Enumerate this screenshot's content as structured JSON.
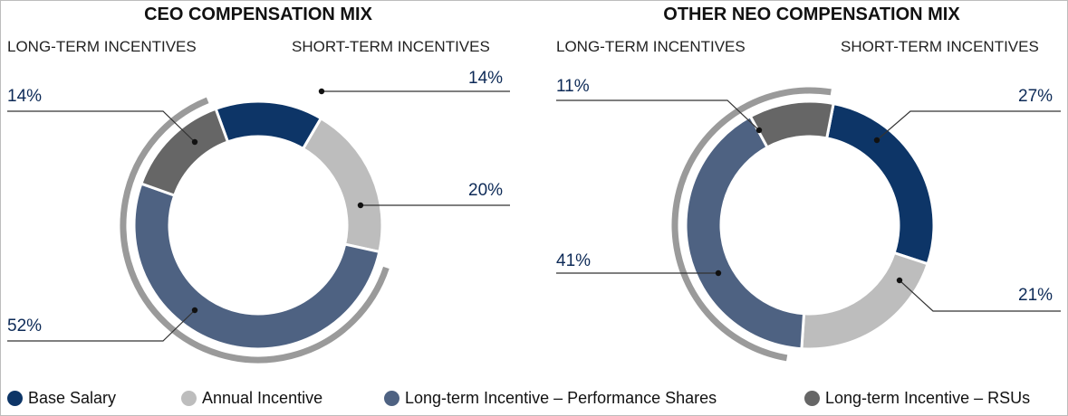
{
  "colors": {
    "base_salary": "#0d3567",
    "annual_incentive": "#bdbdbd",
    "ltip_performance": "#4e6282",
    "ltip_rsus": "#666666",
    "bracket": "#9a9a9a",
    "leader": "#333333"
  },
  "chart_data": [
    {
      "type": "pie",
      "title": "CEO COMPENSATION MIX",
      "group_labels": {
        "long_term": "LONG-TERM INCENTIVES",
        "short_term": "SHORT-TERM INCENTIVES"
      },
      "categories": [
        "Base Salary",
        "Annual Incentive",
        "Long-term Incentive – Performance Shares",
        "Long-term Incentive – RSUs"
      ],
      "values": [
        14,
        20,
        52,
        14
      ],
      "labels": [
        "14%",
        "20%",
        "52%",
        "14%"
      ]
    },
    {
      "type": "pie",
      "title": "OTHER NEO COMPENSATION MIX",
      "group_labels": {
        "long_term": "LONG-TERM INCENTIVES",
        "short_term": "SHORT-TERM INCENTIVES"
      },
      "categories": [
        "Base Salary",
        "Annual Incentive",
        "Long-term Incentive – Performance Shares",
        "Long-term Incentive – RSUs"
      ],
      "values": [
        27,
        21,
        41,
        11
      ],
      "labels": [
        "27%",
        "21%",
        "41%",
        "11%"
      ]
    }
  ],
  "legend": [
    {
      "label": "Base Salary",
      "color": "#0d3567"
    },
    {
      "label": "Annual Incentive",
      "color": "#bdbdbd"
    },
    {
      "label": "Long-term Incentive – Performance Shares",
      "color": "#4e6282"
    },
    {
      "label": "Long-term Incentive – RSUs",
      "color": "#666666"
    }
  ]
}
